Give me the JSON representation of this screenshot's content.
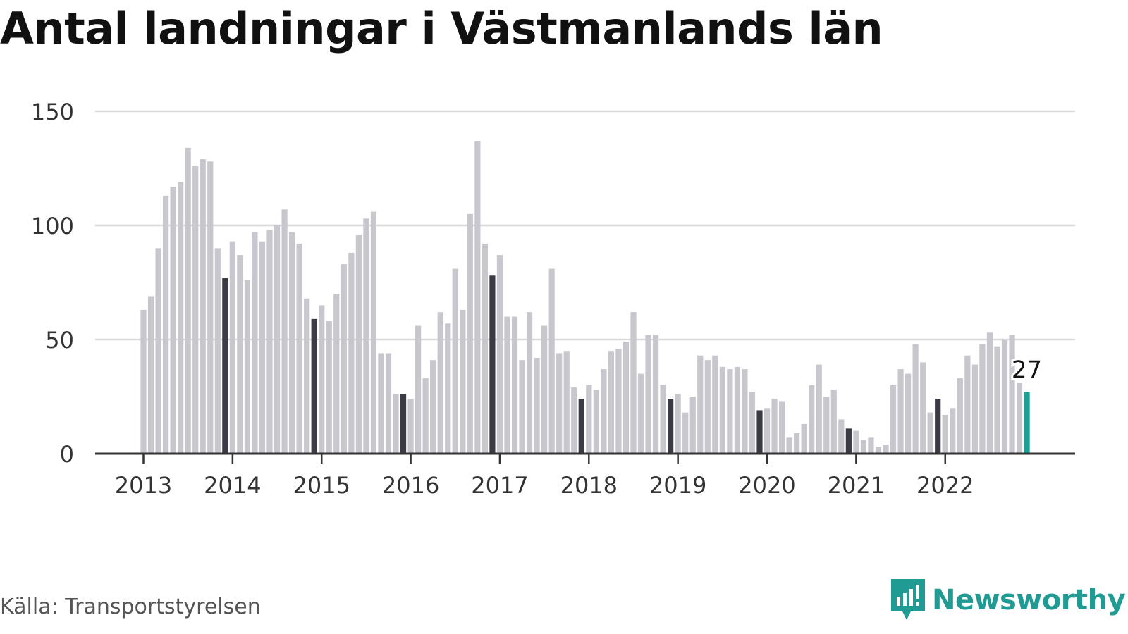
{
  "title": "Antal landningar i Västmanlands län",
  "source": "Källa: Transportstyrelsen",
  "brand": "Newsworthy",
  "colors": {
    "bar": "#c7c7cd",
    "december": "#3b3b45",
    "highlight": "#1aa196",
    "grid": "#d9d9d9",
    "axis": "#333333",
    "brand": "#1f9b93"
  },
  "chart_data": {
    "type": "bar",
    "title": "Antal landningar i Västmanlands län",
    "xlabel": "",
    "ylabel": "",
    "ylim": [
      0,
      150
    ],
    "yticks": [
      0,
      50,
      100,
      150
    ],
    "grid": true,
    "start": "2013-01",
    "x_tick_labels": [
      "2013",
      "2014",
      "2015",
      "2016",
      "2017",
      "2018",
      "2019",
      "2020",
      "2021",
      "2022"
    ],
    "values": [
      63,
      69,
      90,
      113,
      117,
      119,
      134,
      126,
      129,
      128,
      90,
      77,
      93,
      87,
      76,
      97,
      93,
      98,
      100,
      107,
      97,
      92,
      68,
      59,
      65,
      58,
      70,
      83,
      88,
      96,
      103,
      106,
      44,
      44,
      26,
      26,
      24,
      56,
      33,
      41,
      62,
      57,
      81,
      63,
      105,
      137,
      92,
      78,
      87,
      60,
      60,
      41,
      62,
      42,
      56,
      81,
      44,
      45,
      29,
      24,
      30,
      28,
      37,
      45,
      46,
      49,
      62,
      35,
      52,
      52,
      30,
      24,
      26,
      18,
      25,
      43,
      41,
      43,
      38,
      37,
      38,
      37,
      27,
      19,
      20,
      24,
      23,
      7,
      9,
      13,
      30,
      39,
      25,
      28,
      15,
      11,
      10,
      6,
      7,
      3,
      4,
      30,
      37,
      35,
      48,
      40,
      18,
      24,
      17,
      20,
      33,
      43,
      39,
      48,
      53,
      47,
      50,
      52,
      31,
      27
    ],
    "last_value_label": "27"
  }
}
